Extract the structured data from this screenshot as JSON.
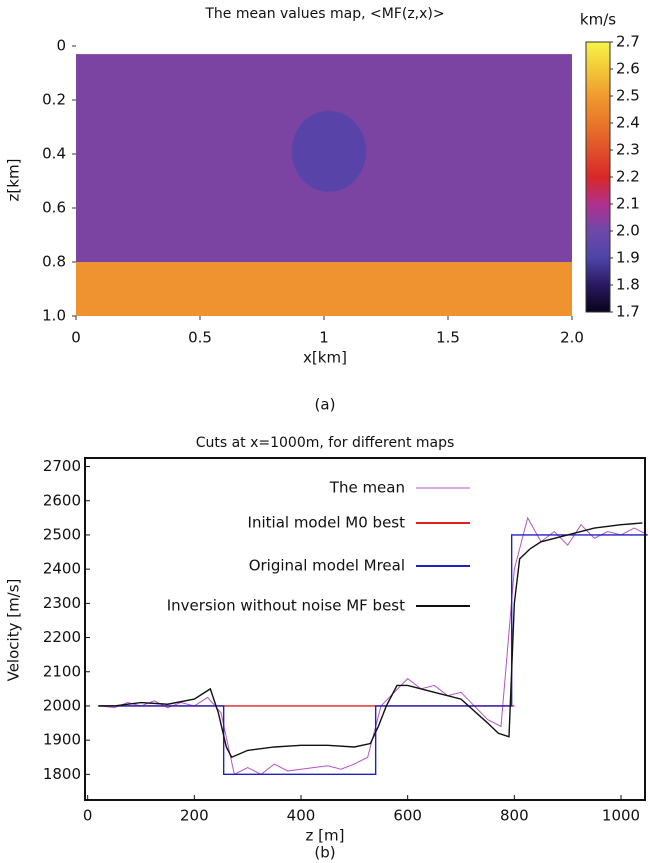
{
  "chart_data": [
    {
      "type": "heatmap",
      "title": "The mean values map, <MF(z,x)>",
      "xlabel": "x[km]",
      "ylabel": "z[km]",
      "caption": "(a)",
      "colorbar_label": "km/s",
      "xlim": [
        0,
        2
      ],
      "ylim": [
        1,
        0
      ],
      "xticks": [
        0,
        0.5,
        1,
        1.5,
        {
          "value": 2,
          "label": "2.0"
        }
      ],
      "yticks": [
        0,
        0.2,
        0.4,
        0.6,
        0.8,
        {
          "value": 1,
          "label": "1.0"
        }
      ],
      "clim": [
        1.7,
        2.7
      ],
      "cticks": [
        1.7,
        1.8,
        1.9,
        {
          "value": 2,
          "label": "2.0"
        },
        2.1,
        2.2,
        2.3,
        2.4,
        2.5,
        2.6,
        2.7
      ],
      "colormap": [
        "#08031a",
        "#2a1860",
        "#4e44a8",
        "#6e48a8",
        "#b0308c",
        "#d82828",
        "#e0502a",
        "#e8782a",
        "#f09a30",
        "#f2c838",
        "#f8f448"
      ],
      "layers": [
        {
          "z": [
            0.03,
            0.8
          ],
          "value": 2.02
        },
        {
          "z": [
            0.8,
            1
          ],
          "value": 2.48
        }
      ],
      "inclusion": {
        "x": 1.02,
        "z": 0.39,
        "radius": 0.15,
        "value": 1.92
      }
    },
    {
      "type": "line",
      "title": "Cuts at x=1000m, for different maps",
      "xlabel": "z [m]",
      "ylabel": "Velocity [m/s]",
      "caption": "(b)",
      "xlim": [
        -5,
        1045
      ],
      "ylim": [
        1725,
        2725
      ],
      "xticks": [
        0,
        200,
        400,
        600,
        800,
        1000
      ],
      "yticks": [
        1800,
        1900,
        2000,
        2100,
        2200,
        2300,
        2400,
        2500,
        2600,
        2700
      ],
      "series": [
        {
          "name": "The mean",
          "color": "#b455c8",
          "x": [
            25,
            50,
            75,
            100,
            125,
            150,
            175,
            200,
            225,
            250,
            275,
            300,
            325,
            350,
            375,
            400,
            425,
            450,
            475,
            500,
            525,
            550,
            575,
            600,
            625,
            650,
            675,
            700,
            725,
            750,
            775,
            800,
            825,
            850,
            875,
            900,
            925,
            950,
            975,
            1000,
            1025,
            1050
          ],
          "values": [
            2000,
            1995,
            2010,
            2000,
            2015,
            1995,
            2010,
            2000,
            2025,
            1980,
            1800,
            1820,
            1800,
            1830,
            1810,
            1815,
            1820,
            1825,
            1815,
            1830,
            1850,
            2000,
            2040,
            2080,
            2050,
            2060,
            2030,
            2040,
            2000,
            1960,
            1940,
            2400,
            2550,
            2480,
            2510,
            2470,
            2530,
            2490,
            2510,
            2500,
            2520,
            2500
          ]
        },
        {
          "name": "Initial model M0 best",
          "color": "#e02020",
          "x": [
            20,
            800
          ],
          "values": [
            2000,
            2000
          ]
        },
        {
          "name": "Original model Mreal",
          "color": "#2020c0",
          "x": [
            20,
            255,
            255,
            540,
            540,
            795,
            795,
            1050
          ],
          "values": [
            2000,
            2000,
            1800,
            1800,
            2000,
            2000,
            2500,
            2500
          ]
        },
        {
          "name": "Inversion without noise MF best",
          "color": "#111111",
          "x": [
            20,
            50,
            100,
            150,
            200,
            230,
            245,
            260,
            270,
            300,
            350,
            400,
            450,
            500,
            530,
            545,
            560,
            580,
            600,
            650,
            700,
            750,
            770,
            790,
            800,
            810,
            830,
            850,
            900,
            950,
            1000,
            1040
          ],
          "values": [
            2000,
            2000,
            2010,
            2005,
            2020,
            2050,
            1980,
            1880,
            1850,
            1870,
            1880,
            1885,
            1885,
            1880,
            1890,
            1940,
            2000,
            2060,
            2060,
            2040,
            2020,
            1950,
            1920,
            1910,
            2300,
            2430,
            2460,
            2480,
            2500,
            2520,
            2530,
            2535
          ]
        }
      ]
    }
  ]
}
